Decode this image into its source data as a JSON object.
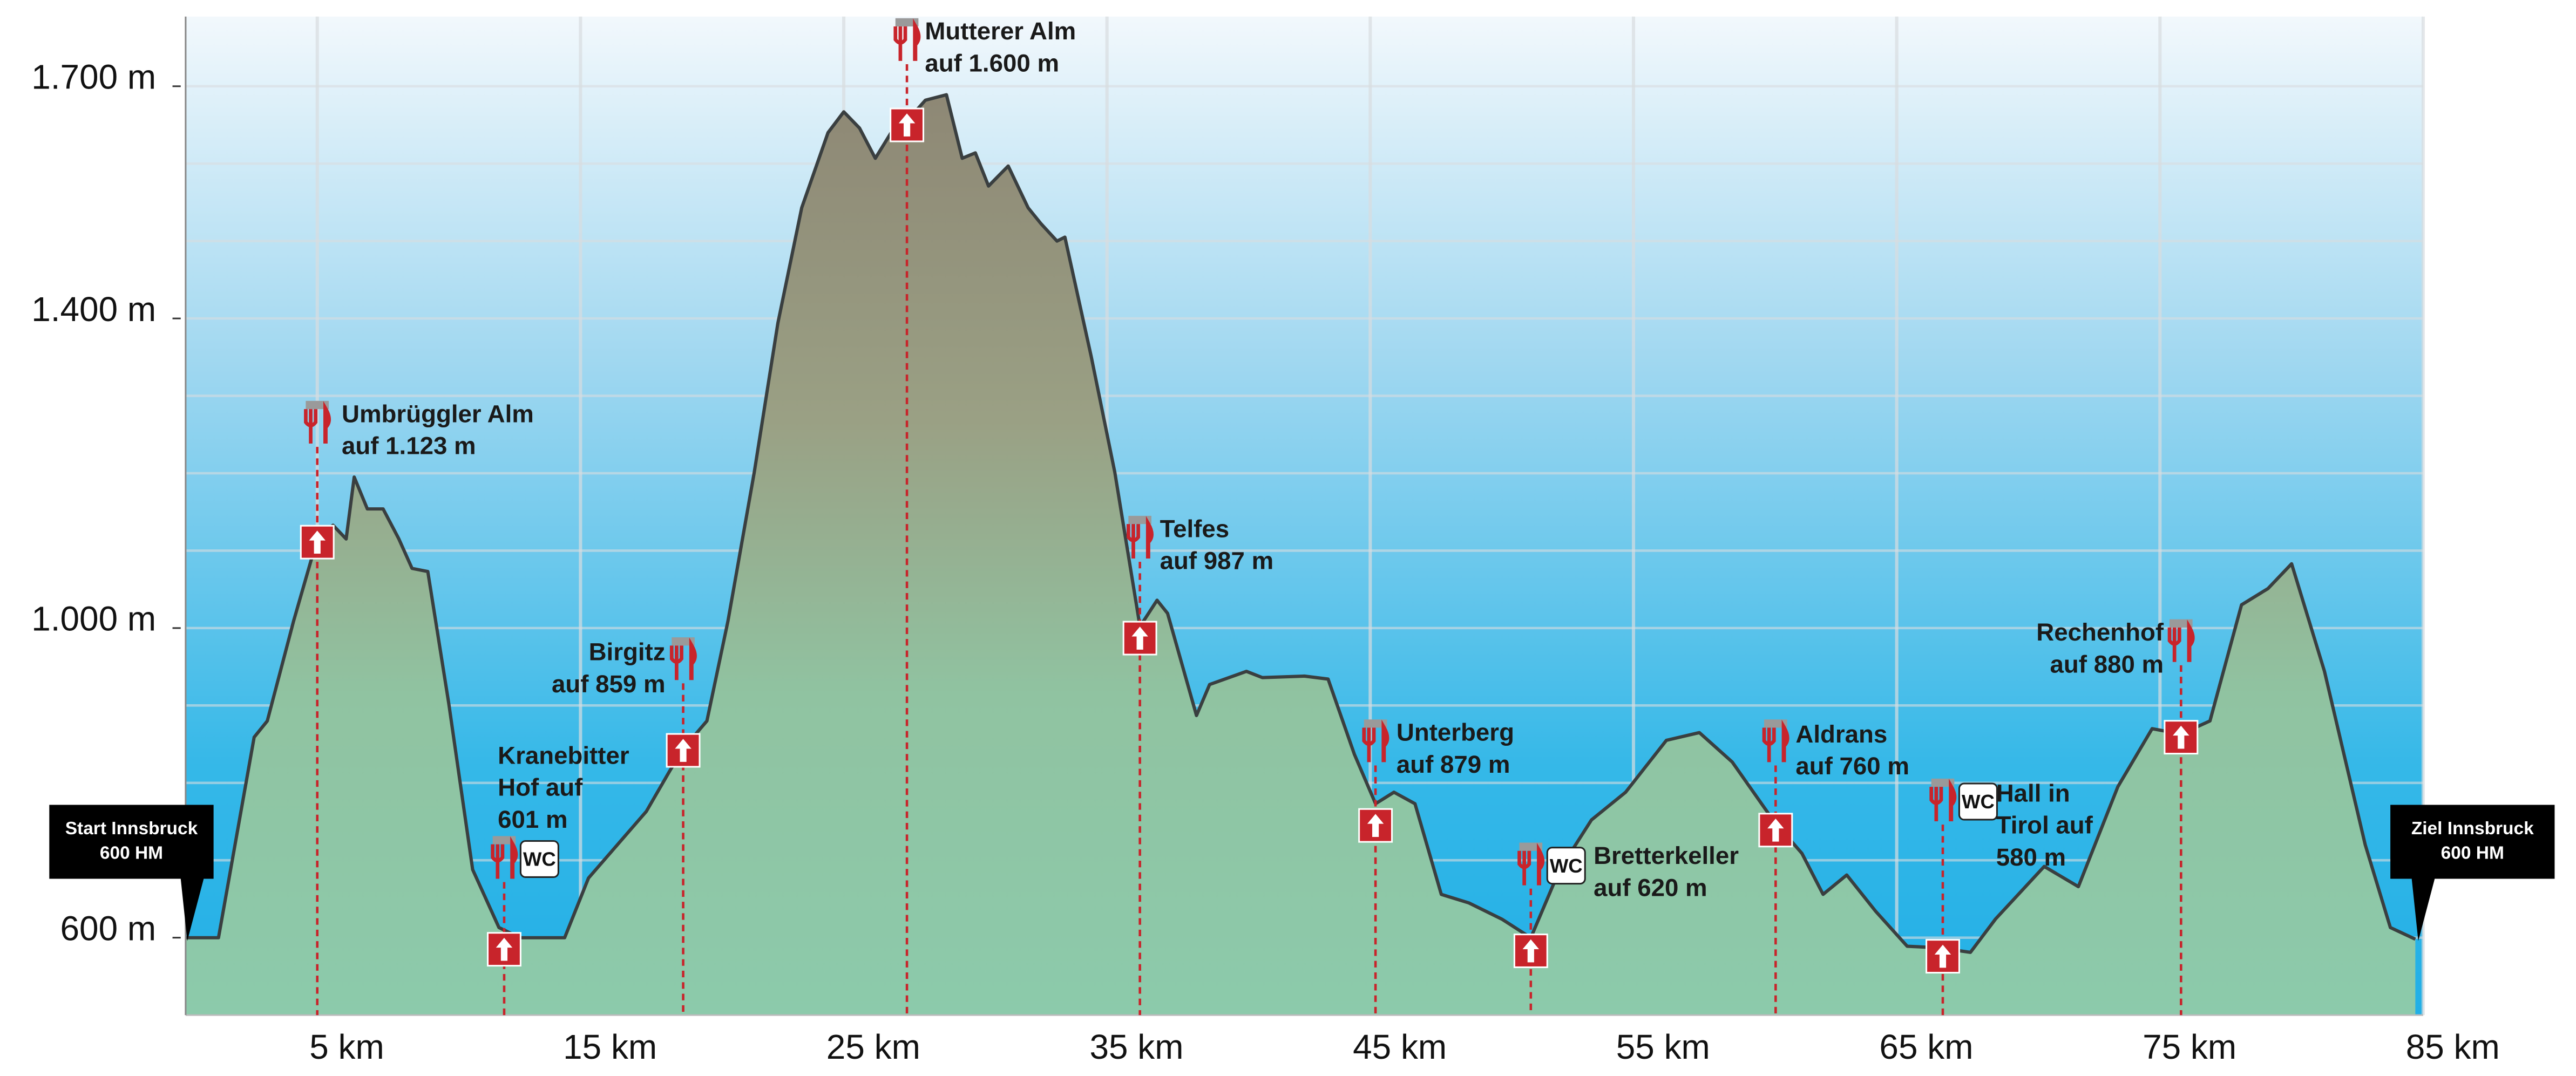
{
  "chart_data": {
    "type": "area",
    "xlim": [
      0,
      85
    ],
    "ylim": [
      500,
      1790
    ],
    "xticks": [
      {
        "value": 5,
        "label": "5 km"
      },
      {
        "value": 15,
        "label": "15 km"
      },
      {
        "value": 25,
        "label": "25 km"
      },
      {
        "value": 35,
        "label": "35 km"
      },
      {
        "value": 45,
        "label": "45 km"
      },
      {
        "value": 55,
        "label": "55 km"
      },
      {
        "value": 65,
        "label": "65 km"
      },
      {
        "value": 75,
        "label": "75 km"
      },
      {
        "value": 85,
        "label": "85 km"
      }
    ],
    "yticks": [
      {
        "value": 600,
        "label": "600 m"
      },
      {
        "value": 1000,
        "label": "1.000 m"
      },
      {
        "value": 1400,
        "label": "1.400 m"
      },
      {
        "value": 1700,
        "label": "1.700 m"
      }
    ],
    "y_minor_grid": [
      700,
      800,
      900,
      1100,
      1200,
      1300,
      1500,
      1600
    ],
    "grid": true,
    "line_color": "#3a3f40",
    "x": [
      0,
      1.25,
      2.6,
      3.1,
      4.1,
      5,
      5.6,
      6.1,
      6.4,
      6.9,
      7.5,
      8.1,
      8.6,
      9.2,
      10,
      10.9,
      11.9,
      12.7,
      14.4,
      15.3,
      16.4,
      17.5,
      18.4,
      18.9,
      19.8,
      20.6,
      21.6,
      22.5,
      23.4,
      24.4,
      25,
      25.6,
      26.2,
      26.8,
      27.4,
      28.1,
      28.9,
      29.5,
      30,
      30.5,
      31.25,
      32,
      32.5,
      33.1,
      33.4,
      34.4,
      35.3,
      36.25,
      36.9,
      37.3,
      38.4,
      38.9,
      40.3,
      40.9,
      42.5,
      43.4,
      44.4,
      45.2,
      45.9,
      46.7,
      47.7,
      48.75,
      50,
      51.1,
      52.2,
      53.4,
      54.7,
      56.25,
      57.5,
      58.75,
      60.3,
      61.4,
      62.2,
      63.1,
      64.2,
      65.4,
      66.6,
      67.8,
      68.75,
      70.6,
      71.9,
      73.4,
      74.7,
      75.8,
      76.9,
      78.1,
      79.1,
      80,
      81.25,
      82.8,
      83.75,
      84.7
    ],
    "values": [
      600,
      600,
      859,
      880,
      1009,
      1115,
      1133,
      1115,
      1195,
      1154,
      1154,
      1115,
      1077,
      1073,
      902,
      688,
      613,
      600,
      600,
      677,
      720,
      763,
      816,
      844,
      880,
      1009,
      1201,
      1394,
      1543,
      1640,
      1667,
      1646,
      1607,
      1640,
      1655,
      1682,
      1689,
      1607,
      1614,
      1571,
      1597,
      1543,
      1522,
      1500,
      1505,
      1351,
      1201,
      1002,
      1036,
      1019,
      887,
      927,
      944,
      936,
      938,
      934,
      837,
      773,
      788,
      773,
      656,
      645,
      624,
      600,
      688,
      752,
      788,
      855,
      865,
      827,
      752,
      709,
      656,
      681,
      634,
      589,
      587,
      581,
      624,
      692,
      666,
      795,
      870,
      863,
      880,
      1030,
      1051,
      1083,
      944,
      720,
      613,
      598
    ],
    "points_of_interest": [
      {
        "lines": [
          "Umbrüggler Alm",
          "auf 1.123 m"
        ],
        "x": 5,
        "y": 1111
      },
      {
        "lines": [
          "Kranebitter",
          "Hof auf",
          "601 m"
        ],
        "x": 12.1,
        "y": 585,
        "amenities": [
          "WC"
        ]
      },
      {
        "lines": [
          "Birgitz",
          "auf 859 m"
        ],
        "x": 18.9,
        "y": 842
      },
      {
        "lines": [
          "Mutterer Alm",
          "auf 1.600 m"
        ],
        "x": 27.4,
        "y": 1650
      },
      {
        "lines": [
          "Telfes",
          "auf 987 m"
        ],
        "x": 36.25,
        "y": 987
      },
      {
        "lines": [
          "Unterberg",
          "auf 879 m"
        ],
        "x": 45.2,
        "y": 745
      },
      {
        "lines": [
          "Bretterkeller",
          "auf 620 m"
        ],
        "x": 51.1,
        "y": 583,
        "amenities": [
          "WC"
        ]
      },
      {
        "lines": [
          "Aldrans",
          "auf 760 m"
        ],
        "x": 60.4,
        "y": 739
      },
      {
        "lines": [
          "Hall in",
          "Tirol auf",
          "580 m"
        ],
        "x": 66.75,
        "y": 576,
        "amenities": [
          "WC"
        ]
      },
      {
        "lines": [
          "Rechenhof",
          "auf 880 m"
        ],
        "x": 75.8,
        "y": 859
      }
    ],
    "start": {
      "lines": [
        "Start Innsbruck",
        "600 HM"
      ]
    },
    "finish": {
      "lines": [
        "Ziel Innsbruck",
        "600 HM"
      ]
    }
  }
}
